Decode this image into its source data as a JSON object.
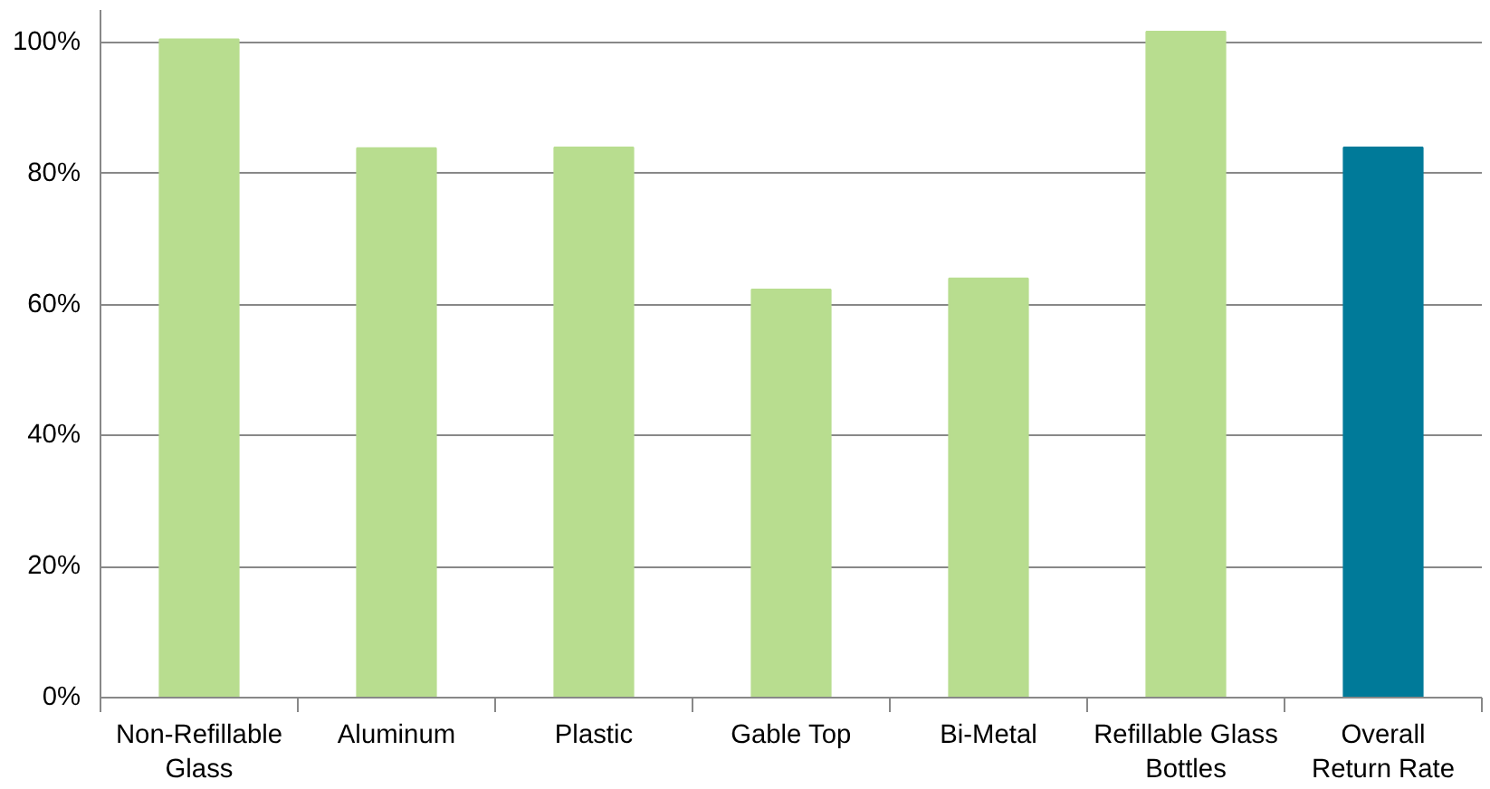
{
  "chart_data": {
    "type": "bar",
    "categories": [
      "Non-Refillable\nGlass",
      "Aluminum",
      "Plastic",
      "Gable Top",
      "Bi-Metal",
      "Refillable Glass\nBottles",
      "Overall\nReturn Rate"
    ],
    "values": [
      100.5,
      83.9,
      84,
      62.3,
      64,
      101.7,
      84
    ],
    "colors": [
      "#b8dd8f",
      "#b8dd8f",
      "#b8dd8f",
      "#b8dd8f",
      "#b8dd8f",
      "#b8dd8f",
      "#007a99"
    ],
    "ylim": [
      0,
      105
    ],
    "yticks": [
      {
        "value": 0,
        "label": "0%"
      },
      {
        "value": 20,
        "label": "20%"
      },
      {
        "value": 40,
        "label": "40%"
      },
      {
        "value": 60,
        "label": "60%"
      },
      {
        "value": 80,
        "label": "80%"
      },
      {
        "value": 100,
        "label": "100%"
      }
    ],
    "grid": "y"
  }
}
